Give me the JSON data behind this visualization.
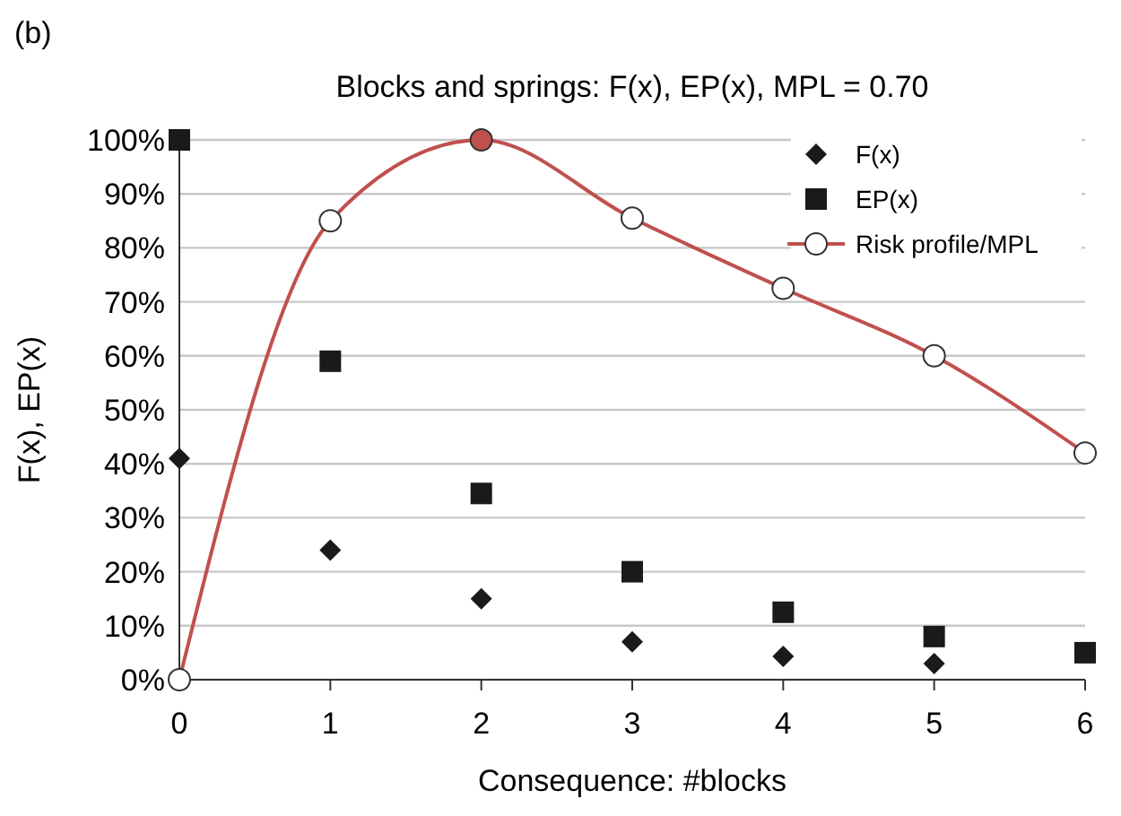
{
  "chart_data": {
    "type": "scatter",
    "title": "Blocks and springs: F(x), EP(x), MPL = 0.70",
    "xlabel": "Consequence: #blocks",
    "ylabel": "F(x), EP(x)",
    "annotations": [
      "(b)"
    ],
    "x": [
      0,
      1,
      2,
      3,
      4,
      5,
      6
    ],
    "series": [
      {
        "name": "F(x)",
        "color": "#1a1a1a",
        "marker": "diamond",
        "values": [
          41,
          24,
          15,
          7,
          4.3,
          3,
          null
        ]
      },
      {
        "name": "EP(x)",
        "color": "#1a1a1a",
        "marker": "square",
        "values": [
          100,
          59,
          34.5,
          20,
          12.5,
          8,
          5
        ]
      },
      {
        "name": "Risk profile/MPL",
        "type": "line",
        "color": "#c0504d",
        "marker": "circle",
        "colors": [
          "#ffffff",
          "#ffffff",
          "#c0504d",
          "#ffffff",
          "#ffffff",
          "#ffffff",
          "#ffffff"
        ],
        "values": [
          0,
          85,
          100,
          85.5,
          72.5,
          60,
          42
        ]
      }
    ],
    "xlim": [
      0,
      6
    ],
    "xticks": [
      0,
      1,
      2,
      3,
      4,
      5,
      6
    ],
    "ylim": [
      0,
      100
    ],
    "yticks": [
      {
        "value": 0,
        "label": "0%"
      },
      {
        "value": 10,
        "label": "10%"
      },
      {
        "value": 20,
        "label": "20%"
      },
      {
        "value": 30,
        "label": "30%"
      },
      {
        "value": 40,
        "label": "40%"
      },
      {
        "value": 50,
        "label": "50%"
      },
      {
        "value": 60,
        "label": "60%"
      },
      {
        "value": 70,
        "label": "70%"
      },
      {
        "value": 80,
        "label": "80%"
      },
      {
        "value": 90,
        "label": "90%"
      },
      {
        "value": 100,
        "label": "100%"
      }
    ],
    "grid": "y",
    "legend": "top right"
  }
}
